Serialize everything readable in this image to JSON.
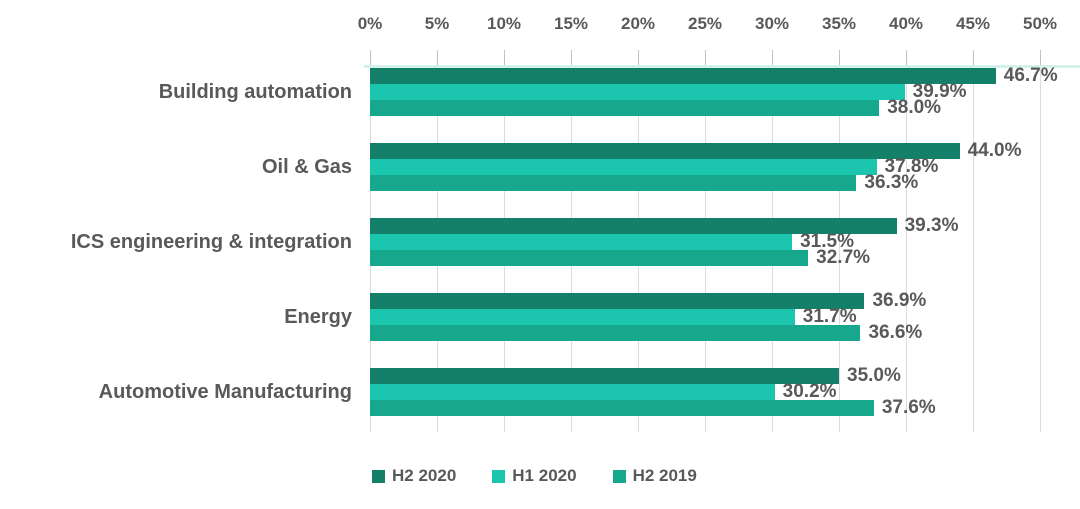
{
  "chart_data": {
    "type": "bar",
    "orientation": "horizontal",
    "title": "",
    "xlabel": "",
    "ylabel": "",
    "categories": [
      "Building automation",
      "Oil & Gas",
      "ICS engineering & integration",
      "Energy",
      "Automotive Manufacturing"
    ],
    "series": [
      {
        "name": "H2 2020",
        "color": "#15806A",
        "values": [
          46.7,
          44.0,
          39.3,
          36.9,
          35.0
        ],
        "labels": [
          "46.7%",
          "44.0%",
          "39.3%",
          "36.9%",
          "35.0%"
        ]
      },
      {
        "name": "H1 2020",
        "color": "#1CC5AE",
        "values": [
          39.9,
          37.8,
          31.5,
          31.7,
          30.2
        ],
        "labels": [
          "39.9%",
          "37.8%",
          "31.5%",
          "31.7%",
          "30.2%"
        ]
      },
      {
        "name": "H2 2019",
        "color": "#16A78C",
        "values": [
          38.0,
          36.3,
          32.7,
          36.6,
          37.6
        ],
        "labels": [
          "38.0%",
          "36.3%",
          "32.7%",
          "36.6%",
          "37.6%"
        ]
      }
    ],
    "x_axis": {
      "position": "top",
      "min": 0,
      "max": 50,
      "tick_step": 5,
      "tick_labels": [
        "0%",
        "5%",
        "10%",
        "15%",
        "20%",
        "25%",
        "30%",
        "35%",
        "40%",
        "45%",
        "50%"
      ]
    },
    "grid": true,
    "legend": {
      "position": "bottom",
      "items": [
        "H2 2020",
        "H1 2020",
        "H2 2019"
      ]
    }
  },
  "colors": {
    "axis_text": "#595959",
    "category_text": "#595959",
    "value_text": "#595959",
    "gridline": "#DCDCDC",
    "tick": "#C0C0C0",
    "plot_top_strip": "#D4F1EC",
    "background": "#FFFFFF"
  }
}
